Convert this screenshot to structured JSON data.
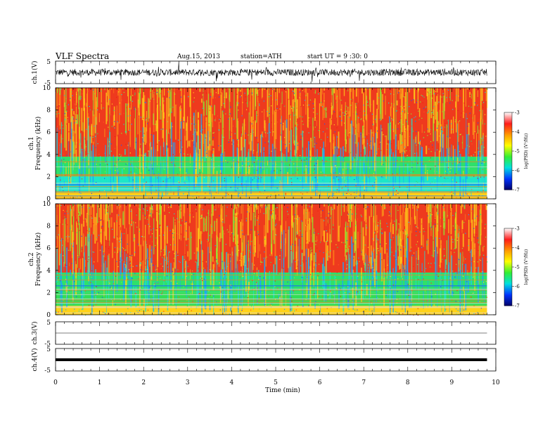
{
  "header": {
    "title": "VLF Spectra",
    "date": "Aug.15, 2013",
    "station": "station=ATH",
    "start": "start UT =  9 :30: 0"
  },
  "chart_data": [
    {
      "type": "line",
      "panel": "ch1-waveform",
      "ylabel": "ch.1(V)",
      "ylim": [
        -5,
        5
      ],
      "yticks": [
        "5",
        "-5"
      ],
      "xlim": [
        0,
        10
      ],
      "trace": {
        "color": "#000000",
        "baseline": 0,
        "amplitude_approx": 1.5,
        "x_end": 9.8
      }
    },
    {
      "type": "heatmap",
      "panel": "ch1-spectrogram",
      "ylabel": "ch.1\nFrequency (kHz)",
      "ylim": [
        0,
        10
      ],
      "yticks": [
        "0",
        "2",
        "4",
        "6",
        "8",
        "10"
      ],
      "xlim": [
        0,
        10
      ],
      "x_end": 9.8,
      "bands": [
        {
          "from": 3.8,
          "to": 10,
          "color": "#ee3a1e",
          "level": -4
        },
        {
          "from": 2.0,
          "to": 3.8,
          "color": "#2fe06a",
          "level": -5.5
        },
        {
          "from": 0.6,
          "to": 2.0,
          "color": "#1ee6c8",
          "level": -6
        },
        {
          "from": 0.0,
          "to": 0.6,
          "color": "#ffd21a",
          "level": -4.5
        }
      ],
      "colorbar": {
        "label": "log(PSD) (V²/Hz)",
        "range": [
          -7,
          -3
        ],
        "ticks": [
          "-3",
          "-4",
          "-5",
          "-6",
          "-7"
        ],
        "colors": [
          "#ffffff",
          "#ff1a1a",
          "#ff9900",
          "#ffff00",
          "#33ee33",
          "#00e0e0",
          "#0033ff",
          "#000066"
        ]
      }
    },
    {
      "type": "heatmap",
      "panel": "ch2-spectrogram",
      "ylabel": "ch.2\nFrequency (kHz)",
      "ylim": [
        0,
        10
      ],
      "yticks": [
        "0",
        "2",
        "4",
        "6",
        "8",
        "10"
      ],
      "xlim": [
        0,
        10
      ],
      "x_end": 9.8,
      "bands": [
        {
          "from": 3.8,
          "to": 10,
          "color": "#ee3a1e",
          "level": -4
        },
        {
          "from": 2.0,
          "to": 3.8,
          "color": "#2fe06a",
          "level": -5.5
        },
        {
          "from": 0.8,
          "to": 2.0,
          "color": "#33dd55",
          "level": -5.3
        },
        {
          "from": 0.0,
          "to": 0.8,
          "color": "#ffd21a",
          "level": -4.5
        }
      ],
      "colorbar": {
        "label": "log(PSD) (V²/Hz)",
        "range": [
          -7,
          -3
        ],
        "ticks": [
          "-3",
          "-4",
          "-5",
          "-6",
          "-7"
        ],
        "colors": [
          "#ffffff",
          "#ff1a1a",
          "#ff9900",
          "#ffff00",
          "#33ee33",
          "#00e0e0",
          "#0033ff",
          "#000066"
        ]
      }
    },
    {
      "type": "line",
      "panel": "ch3-waveform",
      "ylabel": "ch.3(V)",
      "ylim": [
        -5,
        5
      ],
      "yticks": [
        "5",
        "-5"
      ],
      "xlim": [
        0,
        10
      ],
      "trace": {
        "color": "#000000",
        "baseline": 0,
        "amplitude_approx": 0.05,
        "x_end": 9.8
      }
    },
    {
      "type": "line",
      "panel": "ch4-waveform",
      "ylabel": "ch.4(V)",
      "ylim": [
        -5,
        5
      ],
      "yticks": [
        "5",
        "-5"
      ],
      "xlim": [
        0,
        10
      ],
      "xlabel": "Time (min)",
      "xticks": [
        "0",
        "1",
        "2",
        "3",
        "4",
        "5",
        "6",
        "7",
        "8",
        "9",
        "10"
      ],
      "trace": {
        "color": "#000000",
        "baseline": 0,
        "amplitude_approx": 0.3,
        "x_end": 9.8
      }
    }
  ]
}
